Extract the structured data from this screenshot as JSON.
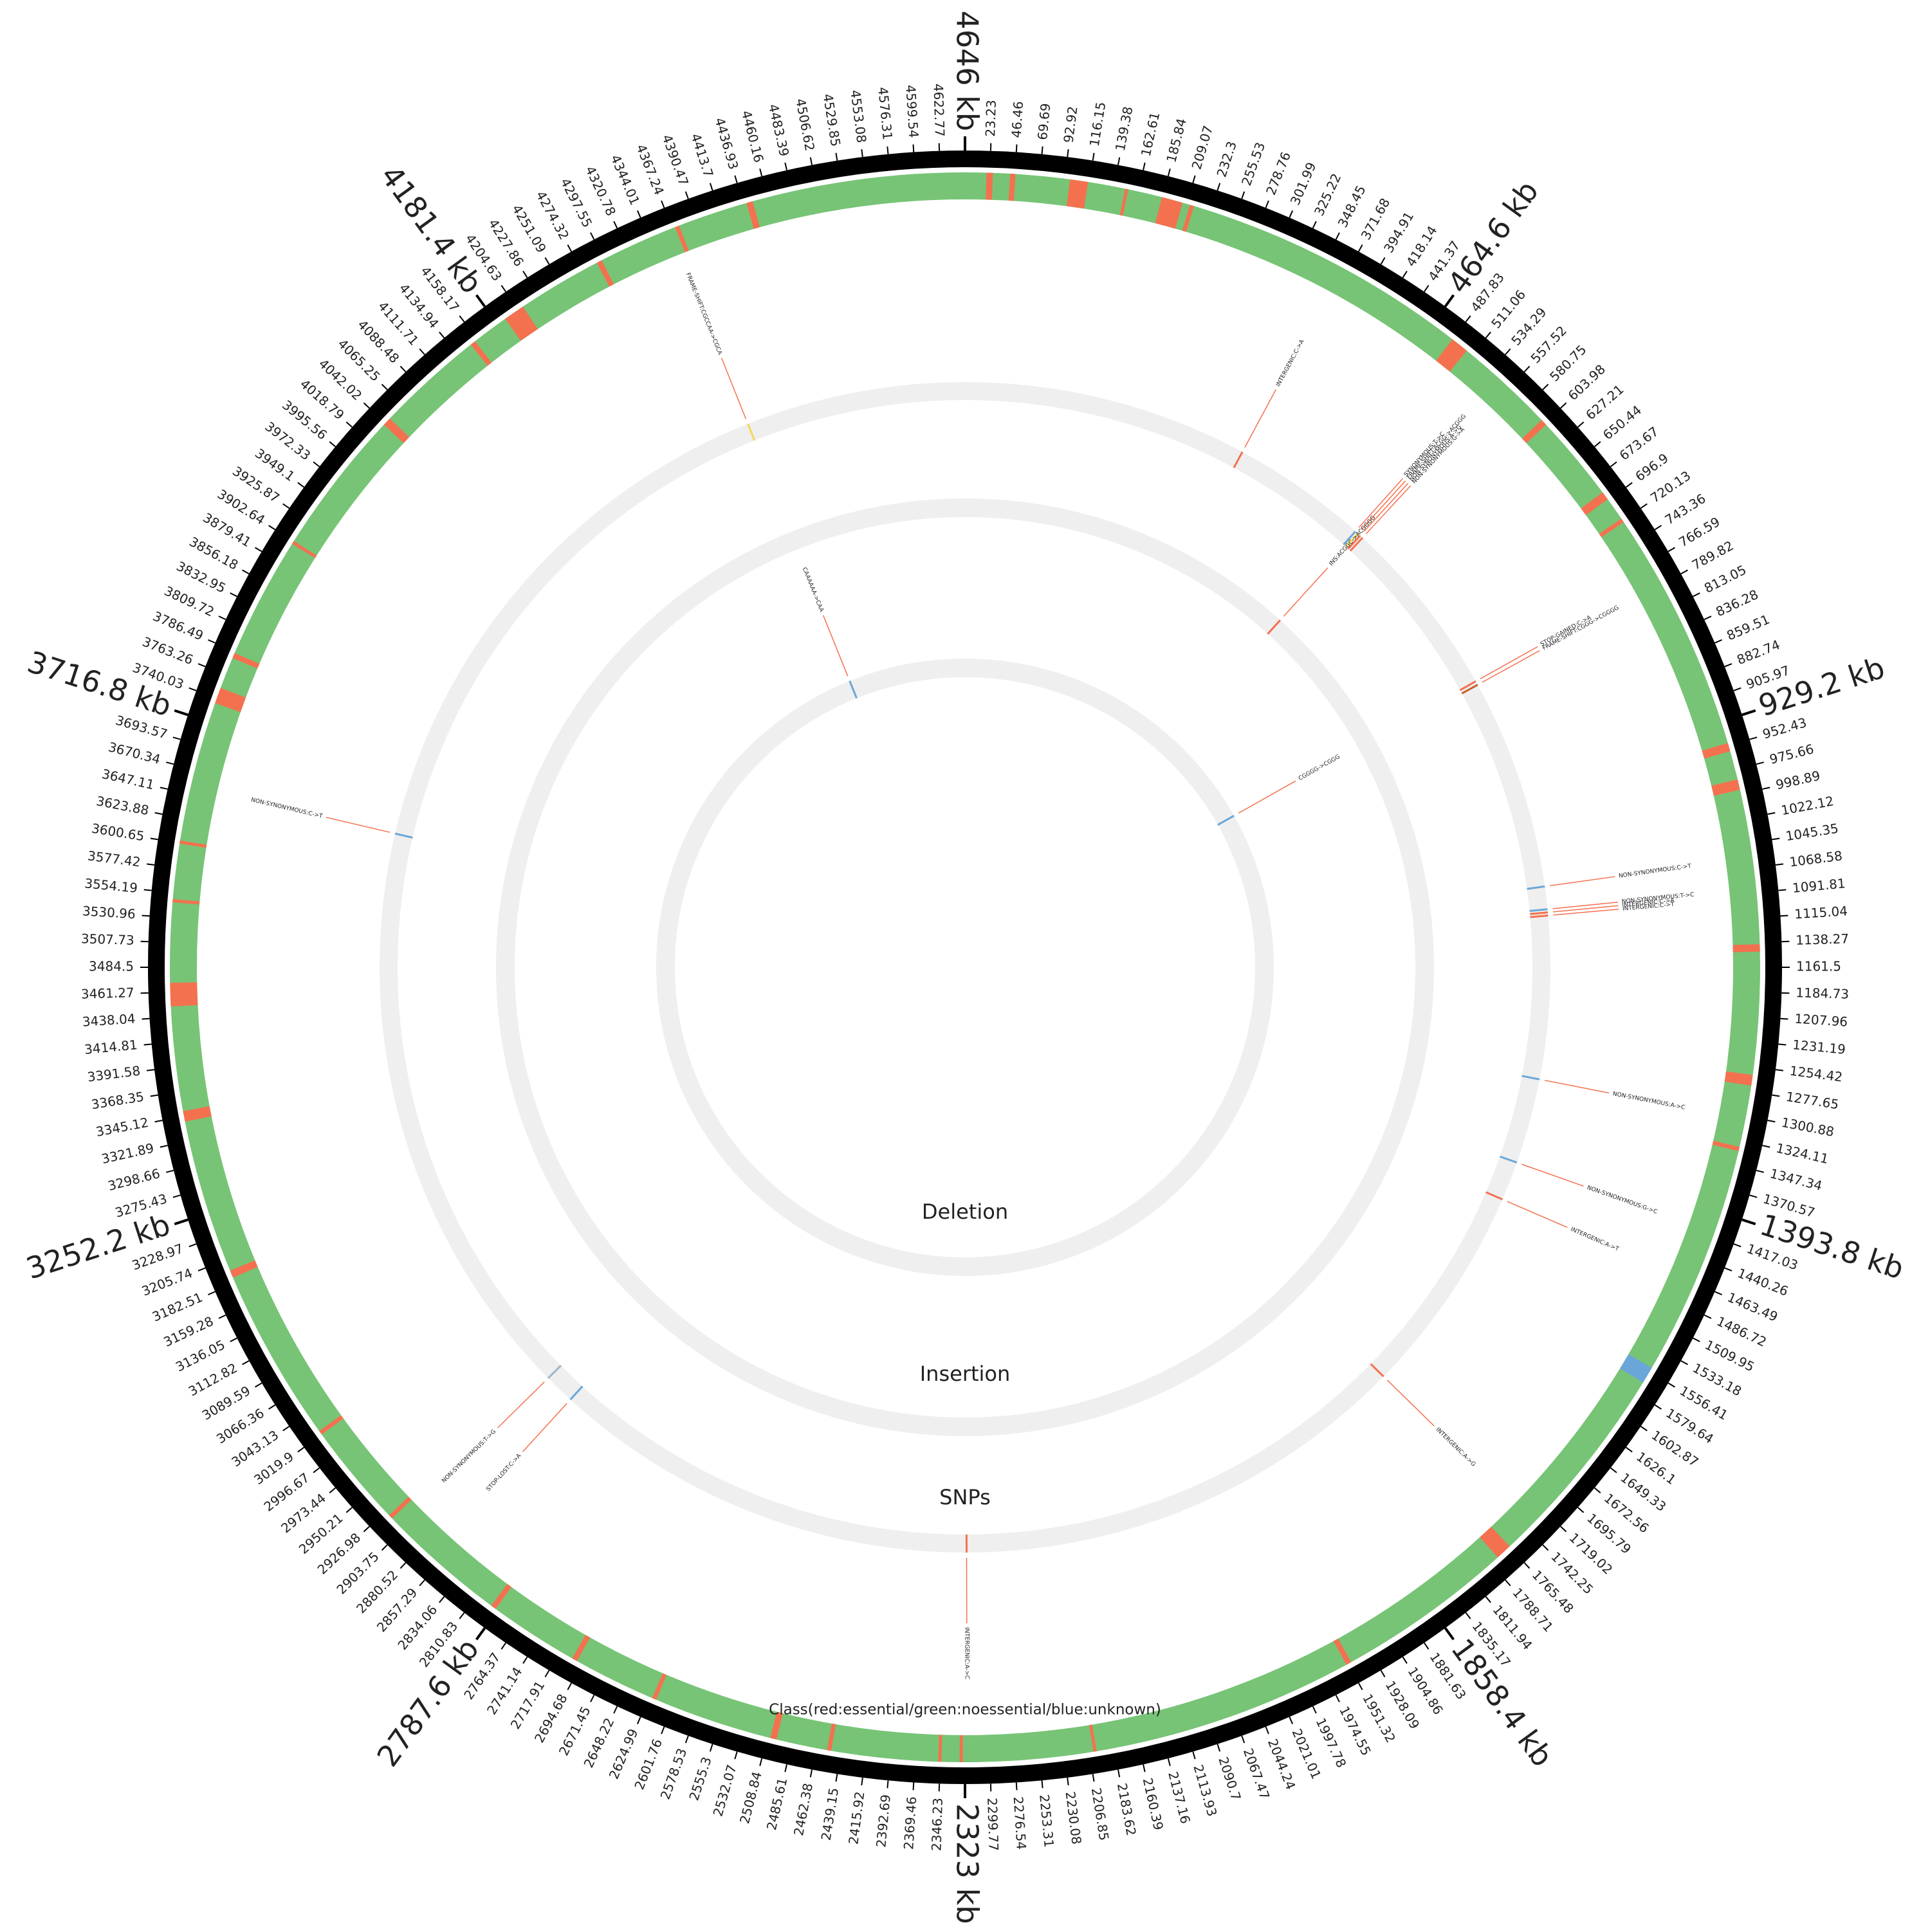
{
  "chart_data": {
    "type": "circos",
    "xlim": [
      0,
      4646
    ],
    "ticks": [
      23.23,
      46.46,
      69.69,
      92.92,
      116.15,
      139.38,
      162.61,
      185.84,
      209.07,
      232.3,
      255.53,
      278.76,
      301.99,
      325.22,
      348.45,
      371.68,
      394.91,
      418.14,
      441.37,
      {
        "value": 464.6,
        "label": "464.6 kb"
      },
      487.83,
      511.06,
      534.29,
      557.52,
      580.75,
      603.98,
      627.21,
      650.44,
      673.67,
      696.9,
      720.13,
      743.36,
      766.59,
      789.82,
      813.05,
      836.28,
      859.51,
      882.74,
      905.97,
      {
        "value": 929.2,
        "label": "929.2 kb"
      },
      952.43,
      975.66,
      998.89,
      1022.12,
      1045.35,
      1068.58,
      1091.81,
      1115.04,
      1138.27,
      1161.5,
      1184.73,
      1207.96,
      1231.19,
      1254.42,
      1277.65,
      1300.88,
      1324.11,
      1347.34,
      1370.57,
      {
        "value": 1393.8,
        "label": "1393.8 kb"
      },
      1417.03,
      1440.26,
      1463.49,
      1486.72,
      1509.95,
      1533.18,
      1556.41,
      1579.64,
      1602.87,
      1626.1,
      1649.33,
      1672.56,
      1695.79,
      1719.02,
      1742.25,
      1765.48,
      1788.71,
      1811.94,
      1835.17,
      {
        "value": 1858.4,
        "label": "1858.4 kb"
      },
      1881.63,
      1904.86,
      1928.09,
      1951.32,
      1974.55,
      1997.78,
      2021.01,
      2044.24,
      2067.47,
      2090.7,
      2113.93,
      2137.16,
      2160.39,
      2183.62,
      2206.85,
      2230.08,
      2253.31,
      2276.54,
      2299.77,
      {
        "value": 2323,
        "label": "2323 kb"
      },
      2346.23,
      2369.46,
      2392.69,
      2415.92,
      2439.15,
      2462.38,
      2485.61,
      2508.84,
      2532.07,
      2555.3,
      2578.53,
      2601.76,
      2624.99,
      2648.22,
      2671.45,
      2694.68,
      2717.91,
      2741.14,
      2764.37,
      {
        "value": 2787.6,
        "label": "2787.6 kb"
      },
      2810.83,
      2834.06,
      2857.29,
      2880.52,
      2903.75,
      2926.98,
      2950.21,
      2973.44,
      2996.67,
      3019.9,
      3043.13,
      3066.36,
      3089.59,
      3112.82,
      3136.05,
      3159.28,
      3182.51,
      3205.74,
      3228.97,
      {
        "value": 3252.2,
        "label": "3252.2 kb"
      },
      3275.43,
      3298.66,
      3321.89,
      3345.12,
      3368.35,
      3391.58,
      3414.81,
      3438.04,
      3461.27,
      3484.5,
      3507.73,
      3530.96,
      3554.19,
      3577.42,
      3600.65,
      3623.88,
      3647.11,
      3670.34,
      3693.57,
      {
        "value": 3716.8,
        "label": "3716.8 kb"
      },
      3740.03,
      3763.26,
      3786.49,
      3809.72,
      3832.95,
      3856.18,
      3879.41,
      3902.64,
      3925.87,
      3949.1,
      3972.33,
      3995.56,
      4018.79,
      4042.02,
      4065.25,
      4088.48,
      4111.71,
      4134.94,
      4158.17,
      {
        "value": 4181.4,
        "label": "4181.4 kb"
      },
      4204.63,
      4227.86,
      4251.09,
      4274.32,
      4297.55,
      4320.78,
      4344.01,
      4367.24,
      4390.47,
      4413.7,
      4436.93,
      4460.16,
      4483.39,
      4506.62,
      4529.85,
      4553.08,
      4576.31,
      4599.54,
      4622.77,
      {
        "value": 4646,
        "label": "4646 kb"
      }
    ],
    "gene_track": {
      "label": "Class(red:essential/green:noessential/blue:unknown)",
      "classes": [
        {
          "color": "#77c476",
          "regions": [
            [
              0,
              4646
            ]
          ]
        },
        {
          "color": "#f4714f",
          "regions": [
            [
              20,
              26
            ],
            [
              42,
              47
            ],
            [
              98,
              115
            ],
            [
              150,
              153
            ],
            [
              185,
              205
            ],
            [
              212,
              216
            ],
            [
              488,
              505
            ],
            [
              600,
              606
            ],
            [
              688,
              696
            ],
            [
              718,
              722
            ],
            [
              950,
              958
            ],
            [
              985,
              995
            ],
            [
              1140,
              1147
            ],
            [
              1262,
              1272
            ],
            [
              1330,
              1334
            ],
            [
              1765,
              1780
            ],
            [
              1948,
              1953
            ],
            [
              2200,
              2203
            ],
            [
              2325,
              2328
            ],
            [
              2345,
              2348
            ],
            [
              2448,
              2452
            ],
            [
              2500,
              2506
            ],
            [
              2618,
              2622
            ],
            [
              2700,
              2705
            ],
            [
              2790,
              2795
            ],
            [
              2918,
              2922
            ],
            [
              3020,
              3024
            ],
            [
              3188,
              3195
            ],
            [
              3340,
              3350
            ],
            [
              3448,
              3470
            ],
            [
              3545,
              3548
            ],
            [
              3600,
              3603
            ],
            [
              3735,
              3750
            ],
            [
              3780,
              3785
            ],
            [
              3900,
              3903
            ],
            [
              4040,
              4048
            ],
            [
              4150,
              4155
            ],
            [
              4190,
              4210
            ],
            [
              4290,
              4295
            ],
            [
              4370,
              4374
            ],
            [
              4440,
              4446
            ]
          ]
        },
        {
          "color": "#6aa7d8",
          "regions": [
            [
              1552,
              1568
            ]
          ]
        }
      ]
    },
    "tracks": [
      {
        "label": "SNPs",
        "variants": [
          {
            "x": 4365,
            "label": "FRAME-SHIFT:CGCCAA->CGCA",
            "color": "#f2d95c"
          },
          {
            "x": 365,
            "label": "INTERGENIC:C->A",
            "color": "#f4714f"
          },
          {
            "x": 540,
            "label": "SYNONYMOUS:T->C",
            "color": "#6aa7d8"
          },
          {
            "x": 544,
            "label": "FRAME-SHIFT:ACGG->ACGGG",
            "color": "#f2d95c"
          },
          {
            "x": 548,
            "label": "NON-SYNONYMOUS:A->G",
            "color": "#f4714f"
          },
          {
            "x": 552,
            "label": "NON-SYNONYMOUS:G->A",
            "color": "#f4714f"
          },
          {
            "x": 784,
            "label": "STOP-GAINED:C->A",
            "color": "#f4714f"
          },
          {
            "x": 789,
            "label": "FRAME-SHIFT:CGGG->CGGGG",
            "color": "#c8602a"
          },
          {
            "x": 1059,
            "label": "NON-SYNONYMOUS:C->T",
            "color": "#6aa7d8"
          },
          {
            "x": 1088,
            "label": "NON-SYNONYMOUS:T->C",
            "color": "#6aa7d8"
          },
          {
            "x": 1092,
            "label": "INTERGENIC:C->A",
            "color": "#f4714f"
          },
          {
            "x": 1096,
            "label": "INTERGENIC:C->T",
            "color": "#f4714f"
          },
          {
            "x": 1304,
            "label": "NON-SYNONYMOUS:A->C",
            "color": "#6aa7d8"
          },
          {
            "x": 1413,
            "label": "NON-SYNONYMOUS:G->C",
            "color": "#6aa7d8"
          },
          {
            "x": 1463,
            "label": "INTERGENIC:A->T",
            "color": "#f4714f"
          },
          {
            "x": 1734,
            "label": "INTERGENIC:A->G",
            "color": "#f4714f"
          },
          {
            "x": 2321,
            "label": "INTERGENIC:A->C",
            "color": "#f4714f"
          },
          {
            "x": 2870,
            "label": "STOP-LOST:C->A",
            "color": "#6aa7d8"
          },
          {
            "x": 2909,
            "label": "NON-SYNONYMOUS:T->G",
            "color": "#9fb3c8"
          },
          {
            "x": 3655,
            "label": "NON-SYNONYMOUS:C->T",
            "color": "#6aa7d8"
          }
        ]
      },
      {
        "label": "Insertion",
        "variants": [
          {
            "x": 545,
            "label": "INS:ACGGC->ACGGGG",
            "color": "#f4714f"
          }
        ]
      },
      {
        "label": "Deletion",
        "variants": [
          {
            "x": 4363,
            "label": "CAAAAAA->CAA",
            "color": "#6aa7d8"
          },
          {
            "x": 782,
            "label": "CGGGG->CGGG",
            "color": "#6aa7d8"
          }
        ]
      }
    ]
  }
}
